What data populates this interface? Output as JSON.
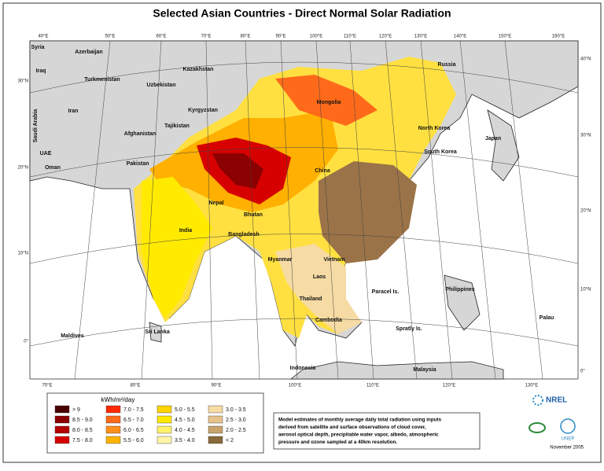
{
  "header": {
    "title": "Selected Asian Countries - Direct Normal Solar Radiation"
  },
  "top_longitudes": [
    "40°E",
    "50°E",
    "60°E",
    "70°E",
    "80°E",
    "90°E",
    "100°E",
    "110°E",
    "120°E",
    "130°E",
    "140°E",
    "150°E",
    "160°E"
  ],
  "bottom_longitudes": [
    "70°E",
    "80°E",
    "90°E",
    "100°E",
    "110°E",
    "120°E",
    "130°E"
  ],
  "left_latitudes": [
    "30°N",
    "20°N",
    "10°N",
    "0°"
  ],
  "right_latitudes": [
    "40°N",
    "30°N",
    "20°N",
    "10°N",
    "0°"
  ],
  "countries": [
    "Syria",
    "Azerbaijan",
    "Iraq",
    "Turkmenistan",
    "Kazakhstan",
    "Uzbekistan",
    "Iran",
    "Kyrgyzstan",
    "Tajikistan",
    "Afghanistan",
    "Saudi Arabia",
    "UAE",
    "Oman",
    "Pakistan",
    "Mongolia",
    "Russia",
    "North Korea",
    "Japan",
    "South Korea",
    "China",
    "Nepal",
    "Bhutan",
    "Bangladesh",
    "India",
    "Myanmar",
    "Vietnam",
    "Laos",
    "Paracel Is.",
    "Philippines",
    "Thailand",
    "Palau",
    "Cambodia",
    "Spratly Is.",
    "Maldives",
    "Sri Lanka",
    "Indonesia",
    "Malaysia"
  ],
  "legend": {
    "title": "kWh/m²/day",
    "items": [
      {
        "label": "> 9",
        "color": "#4a0000"
      },
      {
        "label": "8.5 - 9.0",
        "color": "#8b0000"
      },
      {
        "label": "8.0 - 8.5",
        "color": "#b30000"
      },
      {
        "label": "7.5 - 8.0",
        "color": "#d60000"
      },
      {
        "label": "7.0 - 7.5",
        "color": "#ff2a00"
      },
      {
        "label": "6.5 - 7.0",
        "color": "#ff6a1a"
      },
      {
        "label": "6.0 - 6.5",
        "color": "#ff8f1a"
      },
      {
        "label": "5.5 - 6.0",
        "color": "#ffb300"
      },
      {
        "label": "5.0 - 5.5",
        "color": "#ffd500"
      },
      {
        "label": "4.5 - 5.0",
        "color": "#ffea00"
      },
      {
        "label": "4.0 - 4.5",
        "color": "#fff26b"
      },
      {
        "label": "3.5 - 4.0",
        "color": "#fff5a8"
      },
      {
        "label": "3.0 - 3.5",
        "color": "#f6dba4"
      },
      {
        "label": "2.5 - 3.0",
        "color": "#e6c38a"
      },
      {
        "label": "2.0 - 2.5",
        "color": "#c8a36a"
      },
      {
        "label": "< 2",
        "color": "#8b6a3a"
      }
    ]
  },
  "note": [
    "Model estimates of monthly average daily total radiation using inputs",
    "derived from satellite and surface observations of cloud cover,",
    "aerosol optical depth, precipitable water vapor, albedo, atmospheric",
    "pressure and ozone sampled at a 40km resolution."
  ],
  "logos": {
    "nrel": "NREL",
    "unep": "UNEP"
  },
  "date": "November 2005"
}
